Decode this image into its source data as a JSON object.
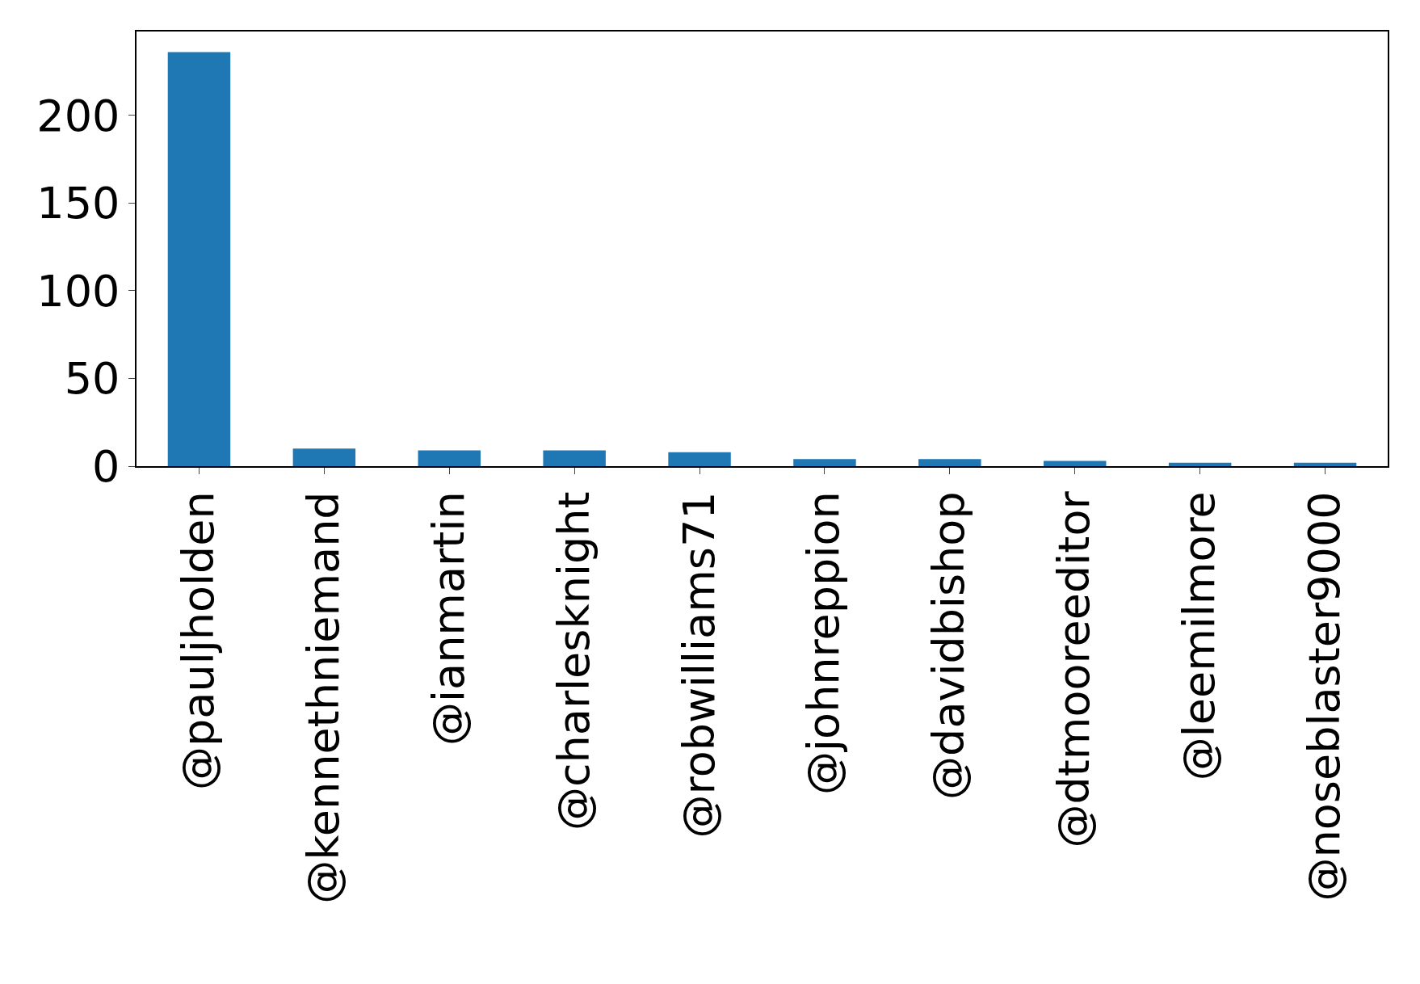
{
  "chart_data": {
    "type": "bar",
    "categories": [
      "@pauljholden",
      "@kennethniemand",
      "@ianmartin",
      "@charlesknight",
      "@robwilliams71",
      "@johnreppion",
      "@davidbishop",
      "@dtmooreeditor",
      "@leemilmore",
      "@noseblaster9000"
    ],
    "values": [
      236,
      10,
      9,
      9,
      8,
      4,
      4,
      3,
      2,
      2
    ],
    "color": "#1f77b4",
    "ylim": [
      0,
      247.8
    ],
    "yticks": [
      0,
      50,
      100,
      150,
      200
    ],
    "grid": false
  }
}
